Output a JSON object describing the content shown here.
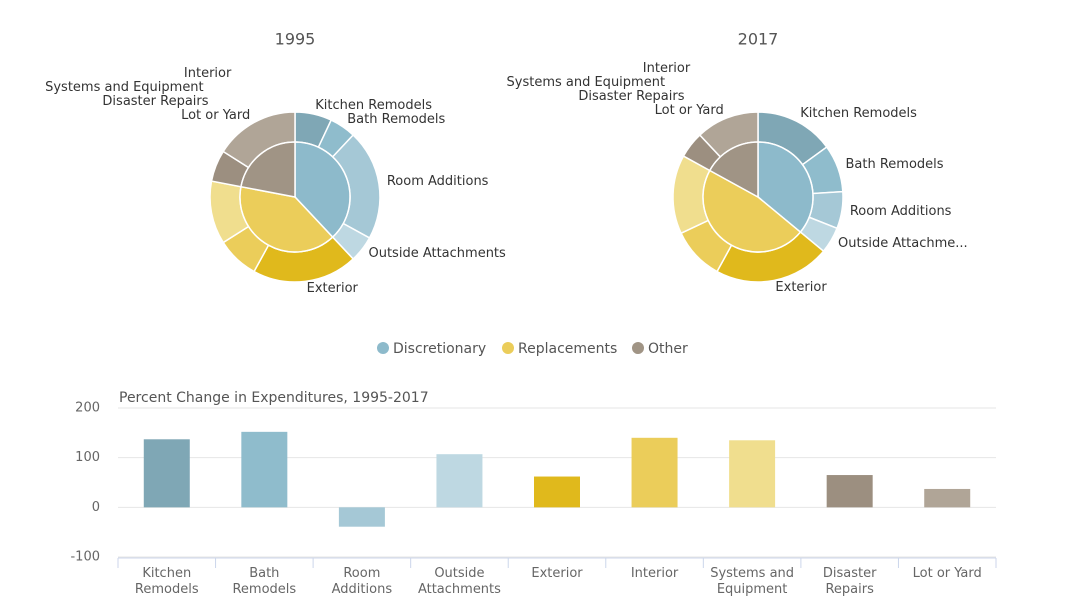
{
  "legend": [
    {
      "name": "Discretionary",
      "color": "#8dbacb"
    },
    {
      "name": "Replacements",
      "color": "#ebcd5a"
    },
    {
      "name": "Other",
      "color": "#a09485"
    }
  ],
  "chart_data": [
    {
      "type": "pie",
      "title": "1995",
      "series": [
        {
          "categories": [
            "Kitchen Remodels",
            "Bath Remodels",
            "Room Additions",
            "Outside Attachments"
          ],
          "values": [
            7,
            5,
            21,
            5
          ],
          "colors": [
            "#7fa7b5",
            "#8fbccc",
            "#a5c8d6",
            "#bed8e2"
          ]
        },
        {
          "categories": [
            "Exterior",
            "Interior",
            "Systems and Equipment"
          ],
          "values": [
            20,
            8,
            12
          ],
          "colors": [
            "#e0b91c",
            "#ebcd5a",
            "#f0de8e"
          ]
        },
        {
          "categories": [
            "Disaster Repairs",
            "Lot or Yard"
          ],
          "values": [
            6,
            16
          ],
          "colors": [
            "#9c8f80",
            "#b0a597"
          ]
        }
      ]
    },
    {
      "type": "pie",
      "title": "2017",
      "series": [
        {
          "categories": [
            "Kitchen Remodels",
            "Bath Remodels",
            "Room Additions",
            "Outside Attachme..."
          ],
          "values": [
            15,
            9,
            7,
            5
          ],
          "colors": [
            "#7fa7b5",
            "#8fbccc",
            "#a5c8d6",
            "#bed8e2"
          ]
        },
        {
          "categories": [
            "Exterior",
            "Interior",
            "Systems and Equipment"
          ],
          "values": [
            22,
            10,
            15
          ],
          "colors": [
            "#e0b91c",
            "#ebcd5a",
            "#f0de8e"
          ]
        },
        {
          "categories": [
            "Disaster Repairs",
            "Lot or Yard"
          ],
          "values": [
            5,
            12
          ],
          "colors": [
            "#9c8f80",
            "#b0a597"
          ]
        }
      ]
    },
    {
      "type": "bar",
      "title": "Percent Change in Expenditures, 1995-2017",
      "categories": [
        "Kitchen Remodels",
        "Bath Remodels",
        "Room Additions",
        "Outside Attachments",
        "Exterior",
        "Interior",
        "Systems and Equipment",
        "Disaster Repairs",
        "Lot or Yard"
      ],
      "values": [
        137,
        152,
        -39,
        107,
        62,
        140,
        135,
        65,
        37
      ],
      "colors": [
        "#7fa7b5",
        "#8fbccc",
        "#a5c8d6",
        "#bed8e2",
        "#e0b91c",
        "#ebcd5a",
        "#f0de8e",
        "#9c8f80",
        "#b0a597"
      ],
      "ylim": [
        -100,
        200
      ],
      "yticks": [
        -100,
        0,
        100,
        200
      ],
      "grid": true
    }
  ]
}
